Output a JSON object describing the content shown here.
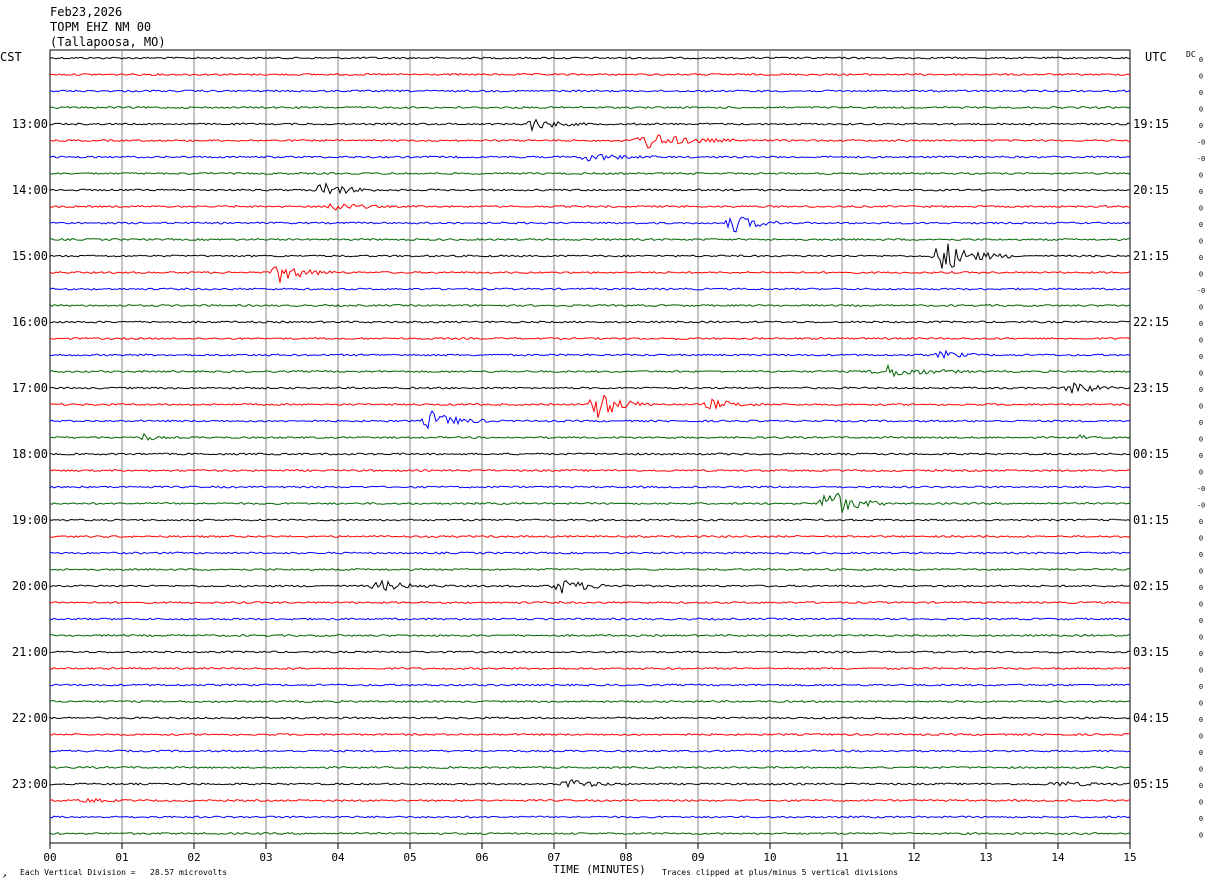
{
  "header": {
    "date": "Feb23,2026",
    "station": "TOPM EHZ NM 00",
    "location": "(Tallapoosa, MO)",
    "left_tz": "CST",
    "right_tz": "UTC",
    "dc_label": "DC"
  },
  "footer": {
    "vertical_division": "Each Vertical Division =   28.57 microvolts",
    "xlabel": "TIME (MINUTES)",
    "clip_note": "Traces clipped at plus/minus 5 vertical divisions"
  },
  "colors": {
    "cycle": [
      "#000000",
      "#ff0000",
      "#0000ff",
      "#006400"
    ],
    "grid": "#888888"
  },
  "chart_data": {
    "type": "line",
    "title": "",
    "xlabel": "TIME (MINUTES)",
    "x_ticks": [
      "00",
      "01",
      "02",
      "03",
      "04",
      "05",
      "06",
      "07",
      "08",
      "09",
      "10",
      "11",
      "12",
      "13",
      "14",
      "15"
    ],
    "xlim": [
      0,
      15
    ],
    "rows_per_hour": 4,
    "row_minutes": 15,
    "num_rows": 48,
    "left_hour_labels": [
      "13:00",
      "14:00",
      "15:00",
      "16:00",
      "17:00",
      "18:00",
      "19:00",
      "20:00",
      "21:00",
      "22:00",
      "23:00"
    ],
    "right_hour_labels": [
      "19:15",
      "20:15",
      "21:15",
      "22:15",
      "23:15",
      "00:15",
      "01:15",
      "02:15",
      "03:15",
      "04:15",
      "05:15"
    ],
    "dc_offsets": [
      "0",
      "0",
      "0",
      "0",
      "0",
      "-0",
      "-0",
      "0",
      "0",
      "0",
      "0",
      "0",
      "0",
      "0",
      "-0",
      "0",
      "0",
      "0",
      "0",
      "0",
      "0",
      "0",
      "0",
      "0",
      "0",
      "0",
      "-0",
      "-0",
      "0",
      "0",
      "0",
      "0",
      "0",
      "0",
      "0",
      "0",
      "0",
      "0",
      "0",
      "0",
      "0",
      "0",
      "0",
      "0",
      "0",
      "0",
      "0",
      "0"
    ],
    "events": [
      {
        "row": 4,
        "minute": 6.7,
        "amp": 6,
        "dur": 0.5
      },
      {
        "row": 5,
        "minute": 8.3,
        "amp": 8,
        "dur": 0.8
      },
      {
        "row": 6,
        "minute": 7.5,
        "amp": 4,
        "dur": 0.6
      },
      {
        "row": 8,
        "minute": 3.8,
        "amp": 8,
        "dur": 0.5
      },
      {
        "row": 9,
        "minute": 3.9,
        "amp": 5,
        "dur": 0.5
      },
      {
        "row": 10,
        "minute": 9.5,
        "amp": 9,
        "dur": 0.5
      },
      {
        "row": 12,
        "minute": 12.4,
        "amp": 16,
        "dur": 0.6
      },
      {
        "row": 13,
        "minute": 3.2,
        "amp": 10,
        "dur": 0.5
      },
      {
        "row": 18,
        "minute": 12.4,
        "amp": 4,
        "dur": 0.4
      },
      {
        "row": 19,
        "minute": 11.6,
        "amp": 6,
        "dur": 0.8
      },
      {
        "row": 20,
        "minute": 14.2,
        "amp": 8,
        "dur": 0.4
      },
      {
        "row": 21,
        "minute": 7.6,
        "amp": 15,
        "dur": 0.5
      },
      {
        "row": 21,
        "minute": 9.2,
        "amp": 5,
        "dur": 0.5
      },
      {
        "row": 22,
        "minute": 5.3,
        "amp": 10,
        "dur": 0.5
      },
      {
        "row": 23,
        "minute": 1.3,
        "amp": 4,
        "dur": 0.2
      },
      {
        "row": 23,
        "minute": 14.3,
        "amp": 3,
        "dur": 0.1
      },
      {
        "row": 27,
        "minute": 10.8,
        "amp": 18,
        "dur": 0.5
      },
      {
        "row": 32,
        "minute": 4.6,
        "amp": 5,
        "dur": 0.6
      },
      {
        "row": 32,
        "minute": 7.1,
        "amp": 7,
        "dur": 0.6
      },
      {
        "row": 44,
        "minute": 7.2,
        "amp": 5,
        "dur": 0.5
      },
      {
        "row": 45,
        "minute": 0.5,
        "amp": 2,
        "dur": 0.4
      },
      {
        "row": 44,
        "minute": 14.0,
        "amp": 2,
        "dur": 0.8
      }
    ]
  }
}
